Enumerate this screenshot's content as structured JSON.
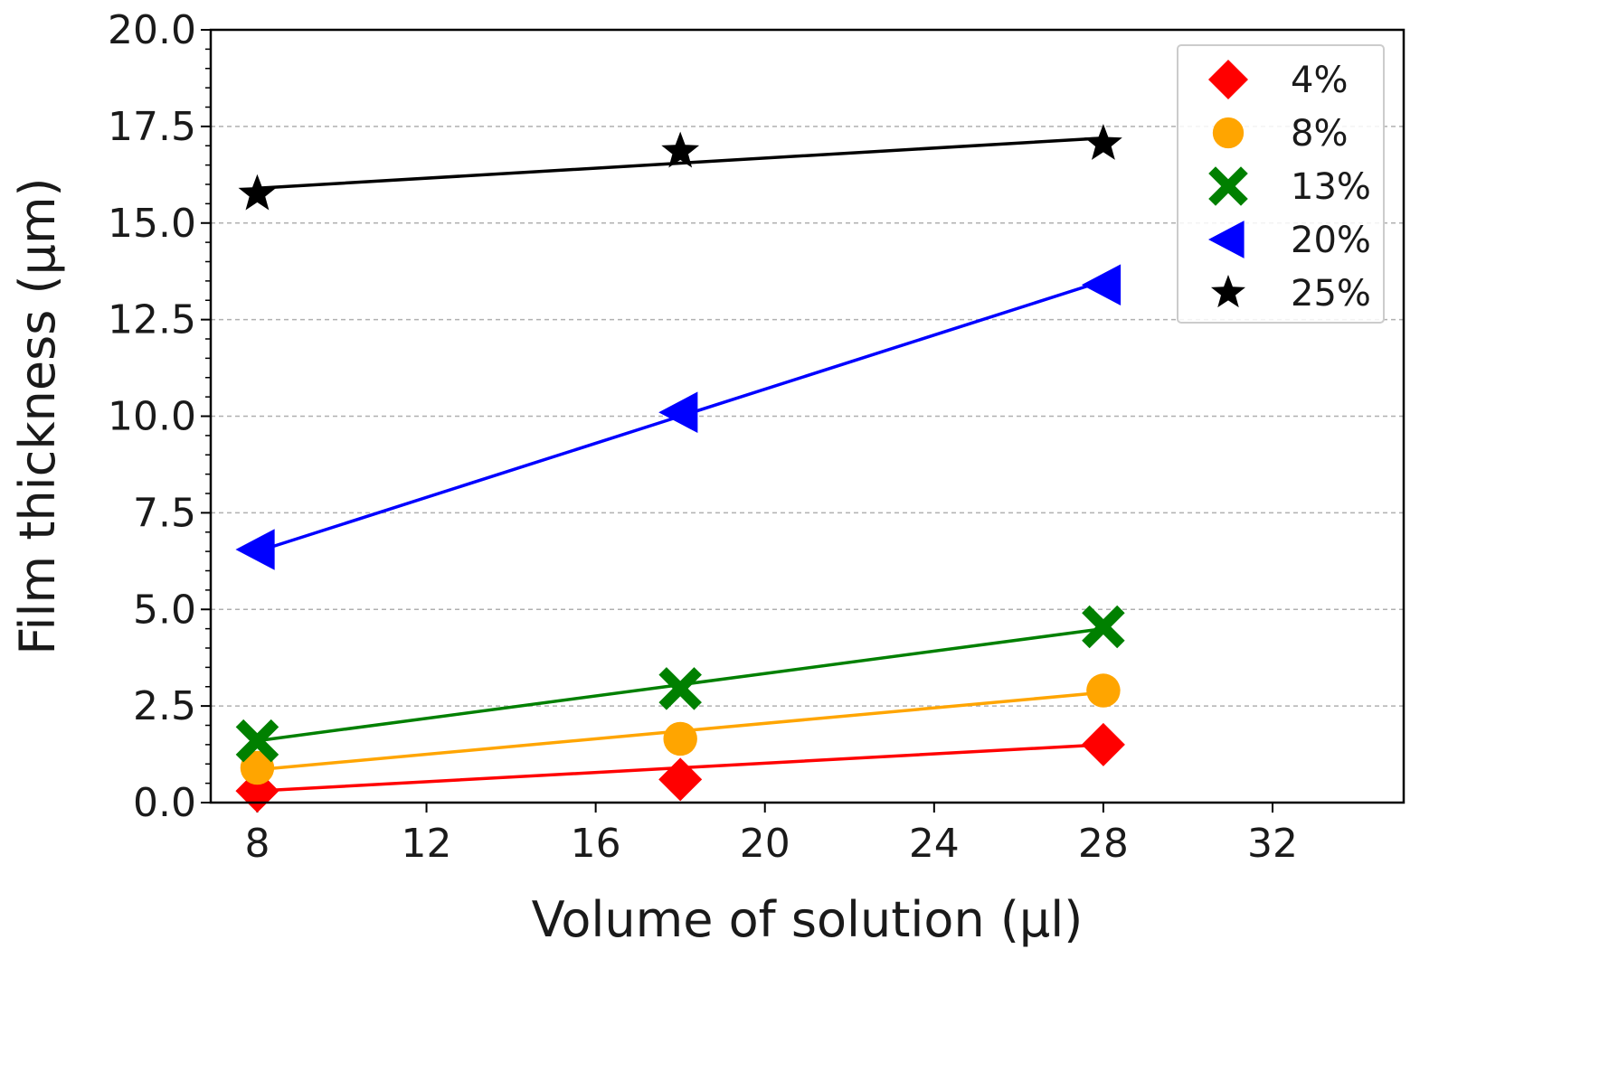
{
  "chart_data": {
    "type": "line",
    "title": "",
    "xlabel": "Volume of solution (μl)",
    "ylabel": "Film thickness (μm)",
    "xlim": [
      6.9,
      35.1
    ],
    "ylim": [
      0.0,
      20.0
    ],
    "xticks": [
      8,
      12,
      16,
      20,
      24,
      28,
      32
    ],
    "xtick_labels": [
      "8",
      "12",
      "16",
      "20",
      "24",
      "28",
      "32"
    ],
    "yticks": [
      0.0,
      2.5,
      5.0,
      7.5,
      10.0,
      12.5,
      15.0,
      17.5,
      20.0
    ],
    "ytick_labels": [
      "0.0",
      "2.5",
      "5.0",
      "7.5",
      "10.0",
      "12.5",
      "15.0",
      "17.5",
      "20.0"
    ],
    "y_minor_step": 0.5,
    "grid": "y-major-dashed",
    "legend_position": "top-right",
    "series": [
      {
        "name": "4%",
        "color": "#ff0000",
        "marker": "diamond",
        "x": [
          8,
          18,
          28
        ],
        "y": [
          0.3,
          0.6,
          1.5
        ],
        "fit": [
          0.3,
          0.9,
          1.5
        ]
      },
      {
        "name": "8%",
        "color": "#ffa500",
        "marker": "circle",
        "x": [
          8,
          18,
          28
        ],
        "y": [
          0.9,
          1.65,
          2.9
        ],
        "fit": [
          0.85,
          1.85,
          2.85
        ]
      },
      {
        "name": "13%",
        "color": "#008000",
        "marker": "x-cross",
        "x": [
          8,
          18,
          28
        ],
        "y": [
          1.6,
          2.95,
          4.55
        ],
        "fit": [
          1.6,
          3.05,
          4.5
        ]
      },
      {
        "name": "20%",
        "color": "#0000ff",
        "marker": "triangle-left",
        "x": [
          8,
          18,
          28
        ],
        "y": [
          6.55,
          10.1,
          13.4
        ],
        "fit": [
          6.5,
          10.0,
          13.5
        ]
      },
      {
        "name": "25%",
        "color": "#000000",
        "marker": "star",
        "x": [
          8,
          18,
          28
        ],
        "y": [
          15.75,
          16.85,
          17.05
        ],
        "fit": [
          15.9,
          16.55,
          17.2
        ]
      }
    ]
  }
}
